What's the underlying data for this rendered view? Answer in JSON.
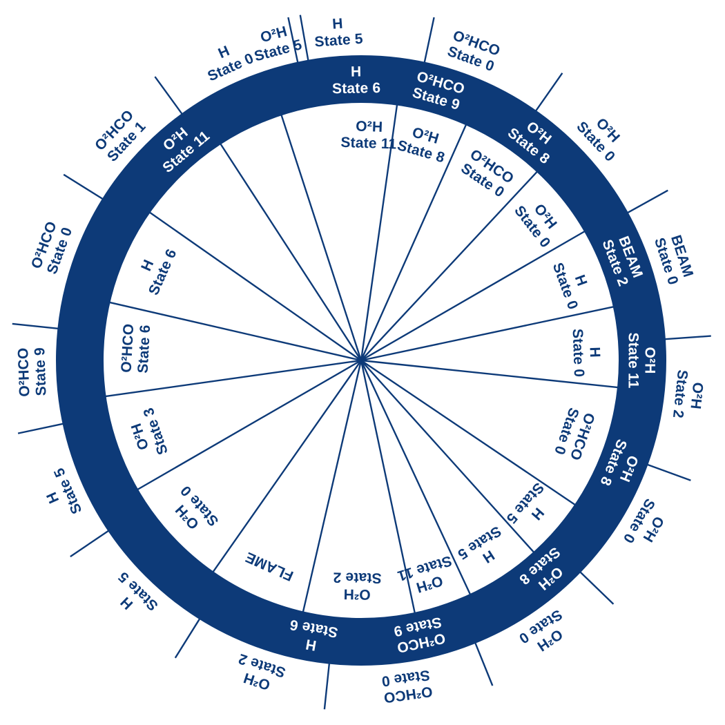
{
  "colors": {
    "ring": "#0d3a78",
    "background": "#ffffff",
    "text_on_ring": "#ffffff",
    "text_dark": "#0d3a78"
  },
  "ring_labels": [
    {
      "species": "H",
      "state": "State 6"
    },
    {
      "species": "O²HCO",
      "state": "State 9"
    },
    {
      "species": "O²H",
      "state": "State 8"
    },
    {
      "species": "BEAM",
      "state": "State 2"
    },
    {
      "species": "O²H",
      "state": "State 11"
    },
    {
      "species": "O²H",
      "state": "State 8"
    },
    {
      "species": "O²H",
      "state": "State 8"
    },
    {
      "species": "O²HCO",
      "state": "State 9"
    },
    {
      "species": "H",
      "state": "State 6"
    },
    {
      "species": "O²H",
      "state": "State 11"
    }
  ],
  "outer_labels": [
    {
      "species": "H",
      "state": "State 5"
    },
    {
      "species": "O²HCO",
      "state": "State 0"
    },
    {
      "species": "O²H",
      "state": "State 0"
    },
    {
      "species": "BEAM",
      "state": "State 0"
    },
    {
      "species": "O²H",
      "state": "State 2"
    },
    {
      "species": "O²H",
      "state": "State 0"
    },
    {
      "species": "O²H",
      "state": "State 0"
    },
    {
      "species": "O²HCO",
      "state": "State 0"
    },
    {
      "species": "O²H",
      "state": "State 2"
    },
    {
      "species": "H",
      "state": "State 5"
    },
    {
      "species": "H",
      "state": "State 5"
    },
    {
      "species": "O²HCO",
      "state": "State 9"
    },
    {
      "species": "O²HCO",
      "state": "State 0"
    },
    {
      "species": "O²HCO",
      "state": "State 1"
    },
    {
      "species": "H",
      "state": "State 0"
    },
    {
      "species": "O²H",
      "state": "State 5"
    }
  ],
  "inner_labels": [
    {
      "species": "O²H",
      "state": "State 11"
    },
    {
      "species": "O²H",
      "state": "State 8"
    },
    {
      "species": "O²HCO",
      "state": "State 0"
    },
    {
      "species": "O²H",
      "state": "State 0"
    },
    {
      "species": "H",
      "state": "State 0"
    },
    {
      "species": "H",
      "state": "State 0"
    },
    {
      "species": "O²HCO",
      "state": "State 0"
    },
    {
      "species": "H",
      "state": "State 5"
    },
    {
      "species": "H",
      "state": "State 5"
    },
    {
      "species": "O²H",
      "state": "State 11"
    },
    {
      "species": "O²H",
      "state": "State 2"
    },
    {
      "species": "FLAME",
      "state": ""
    },
    {
      "species": "O²H",
      "state": "State 0"
    },
    {
      "species": "O²H",
      "state": "State 3"
    },
    {
      "species": "O²HCO",
      "state": "State 6"
    },
    {
      "species": "H",
      "state": "State 6"
    }
  ]
}
